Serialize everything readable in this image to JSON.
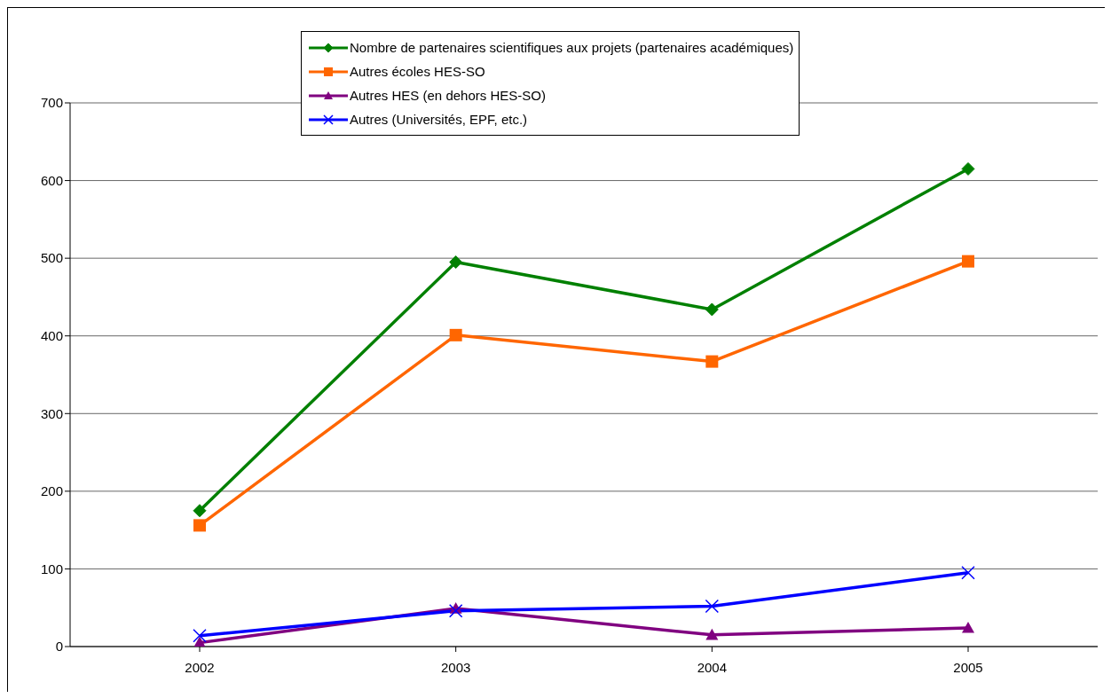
{
  "chart_data": {
    "type": "line",
    "categories": [
      "2002",
      "2003",
      "2004",
      "2005"
    ],
    "series": [
      {
        "name": "Nombre de partenaires scientifiques aux projets (partenaires académiques)",
        "color": "#008000",
        "marker": "diamond",
        "values": [
          175,
          495,
          434,
          615
        ]
      },
      {
        "name": "Autres écoles HES-SO",
        "color": "#ff6600",
        "marker": "square",
        "values": [
          156,
          401,
          367,
          496
        ]
      },
      {
        "name": "Autres HES (en dehors HES-SO)",
        "color": "#800080",
        "marker": "triangle",
        "values": [
          5,
          49,
          15,
          24
        ]
      },
      {
        "name": "Autres (Universités, EPF, etc.)",
        "color": "#0000ff",
        "marker": "cross",
        "values": [
          14,
          46,
          52,
          95
        ]
      }
    ],
    "ylim": [
      0,
      700
    ],
    "yticks": [
      0,
      100,
      200,
      300,
      400,
      500,
      600,
      700
    ],
    "grid": "y",
    "legend": "top"
  }
}
